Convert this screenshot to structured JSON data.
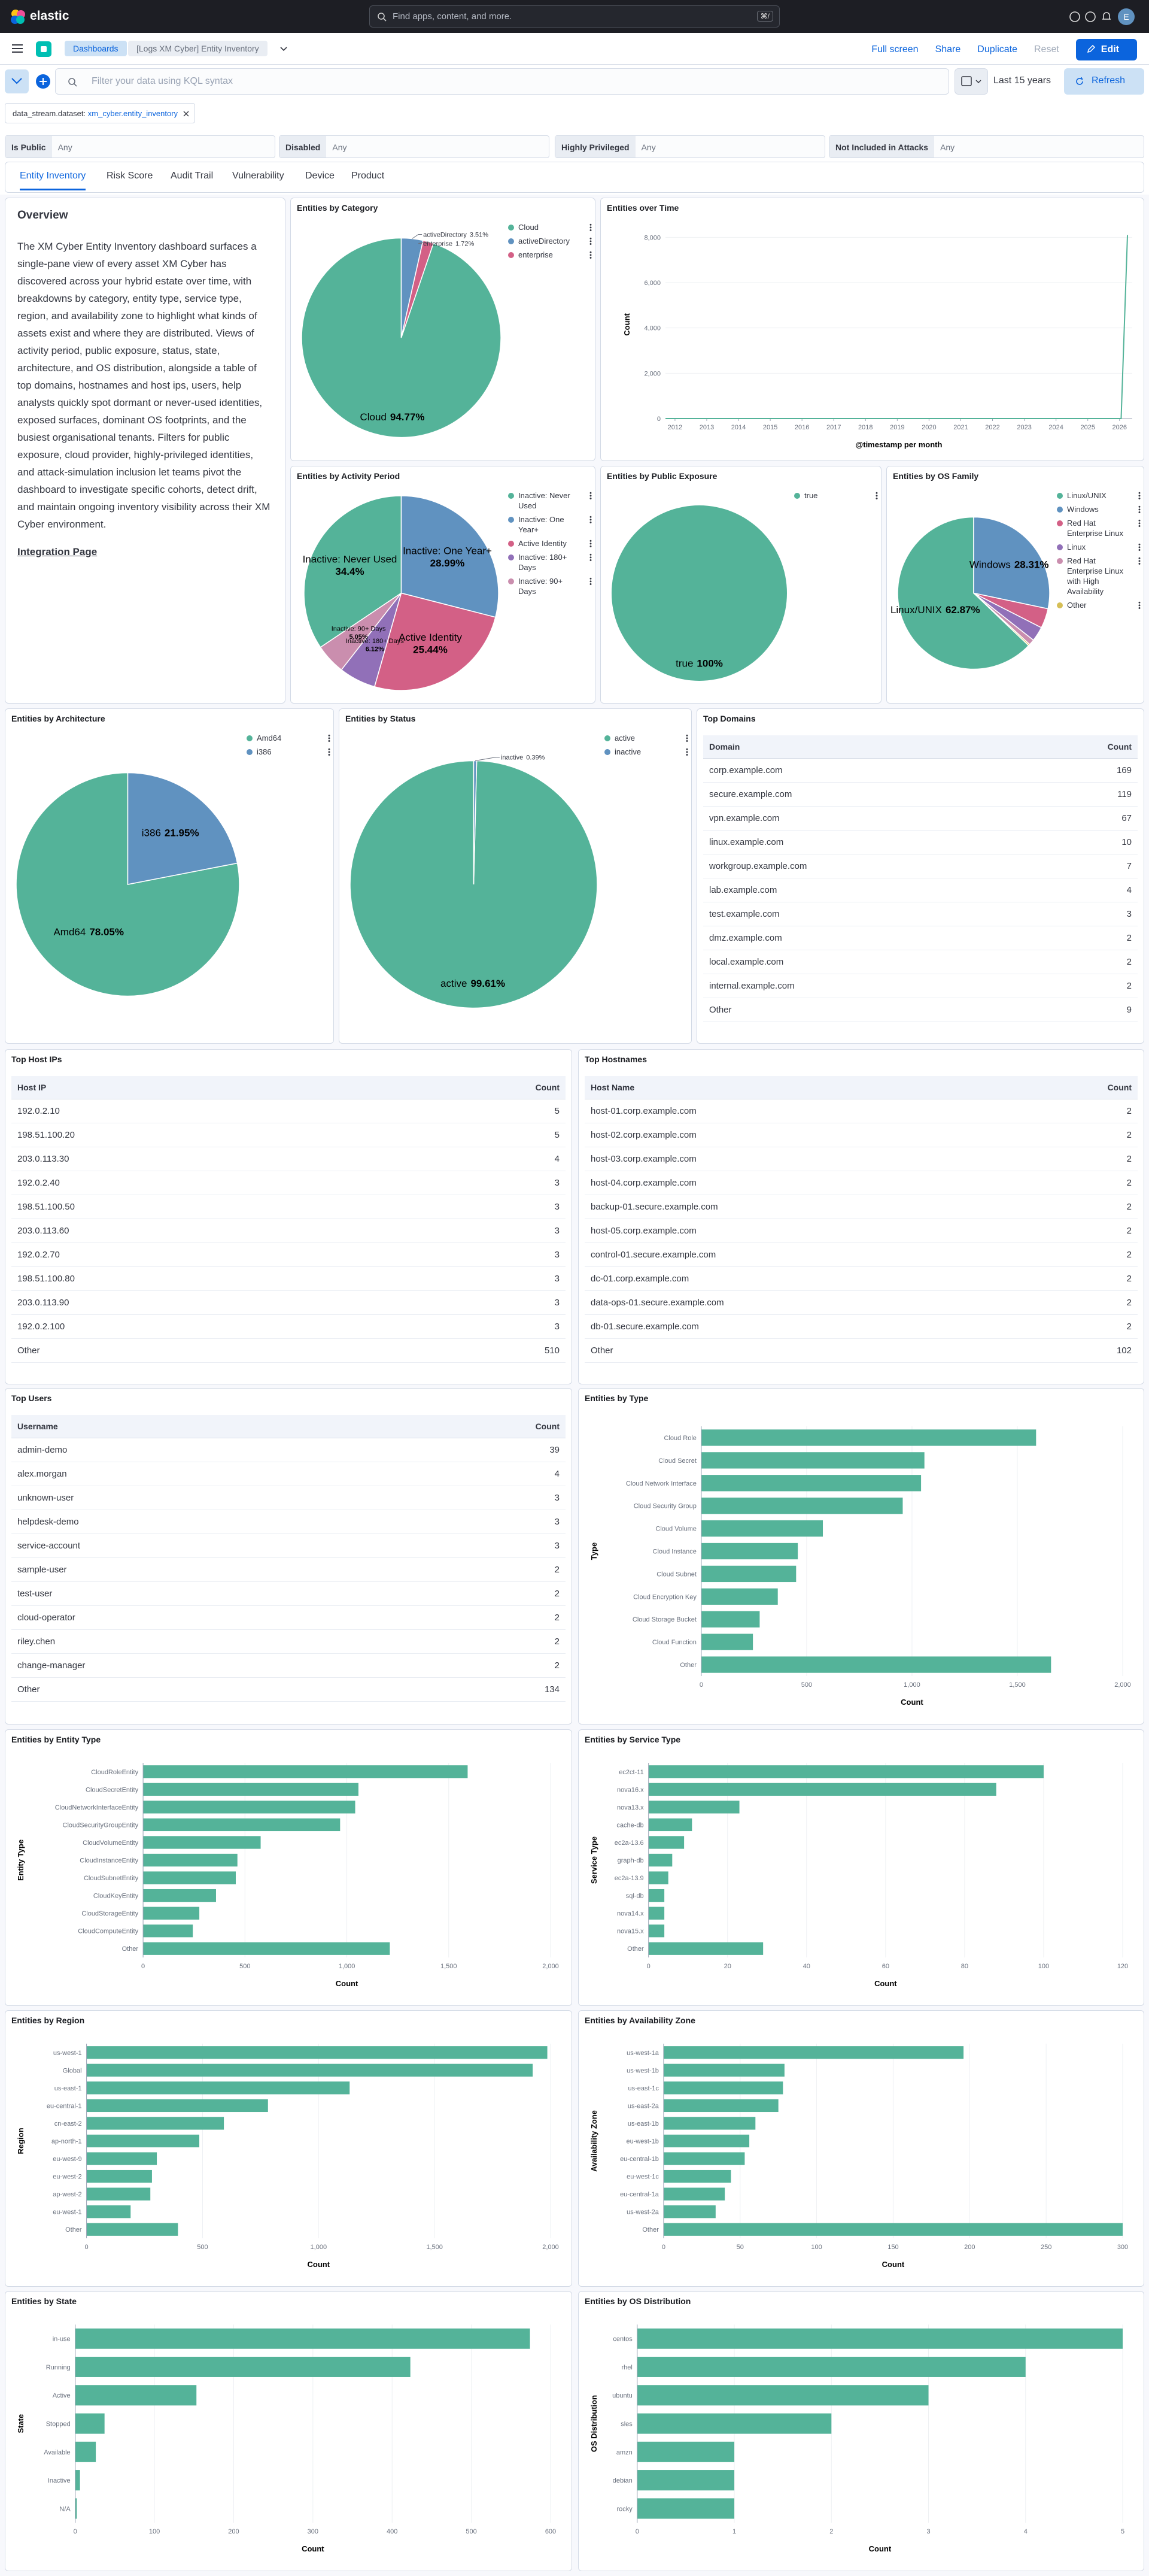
{
  "header": {
    "brand": "elastic",
    "search": "Find apps, content, and more.",
    "shortcut": "⌘/",
    "avatar": "E"
  },
  "nav": {
    "breadcrumbs": [
      "Dashboards",
      "[Logs XM Cyber] Entity Inventory"
    ],
    "actions": [
      "Full screen",
      "Share",
      "Duplicate",
      "Reset"
    ],
    "edit": "Edit"
  },
  "query": {
    "placeholder": "Filter your data using KQL syntax",
    "time": "Last 15 years",
    "refresh": "Refresh"
  },
  "filter": {
    "field": "data_stream.dataset:",
    "value": "xm_cyber.entity_inventory"
  },
  "controls": [
    {
      "label": "Is Public",
      "value": "Any"
    },
    {
      "label": "Disabled",
      "value": "Any"
    },
    {
      "label": "Highly Privileged",
      "value": "Any"
    },
    {
      "label": "Not Included in Attacks",
      "value": "Any"
    }
  ],
  "tabs": [
    "Entity Inventory",
    "Risk Score",
    "Audit Trail",
    "Vulnerability",
    "Device",
    "Product"
  ],
  "overview": {
    "title": "Overview",
    "text": "The XM Cyber Entity Inventory dashboard surfaces a single-pane view of every asset XM Cyber has discovered across your hybrid estate over time, with breakdowns by category, entity type, service type, region, and availability zone to highlight what kinds of assets exist and where they are distributed. Views of activity period, public exposure, status, state, architecture, and OS distribution, alongside a table of top domains, hostnames and host ips, users, help analysts quickly spot dormant or never-used identities, exposed surfaces, dominant OS footprints, and the busiest organisational tenants. Filters for public exposure, cloud provider, highly-privileged identities, and attack-simulation inclusion let teams pivot the dashboard to investigate specific cohorts, detect drift, and maintain ongoing inventory visibility across their XM Cyber environment.",
    "link": "Integration Page"
  },
  "chart_data": [
    {
      "type": "pie",
      "title": "Entities by Category",
      "categories": [
        "Cloud",
        "activeDirectory",
        "enterprise"
      ],
      "values": [
        94.77,
        3.51,
        1.72
      ],
      "value_labels": [
        "94.77%",
        "3.51%",
        "1.72%"
      ],
      "colors": [
        "#54B399",
        "#6092C0",
        "#D36086"
      ]
    },
    {
      "type": "line",
      "title": "Entities over Time",
      "x": [
        2011.7,
        2026.05,
        2026.25
      ],
      "values": [
        0,
        0,
        8100
      ],
      "color": "#54B399",
      "xlim": [
        2011.7,
        2026.4
      ],
      "xticks": [
        2012,
        2013,
        2014,
        2015,
        2016,
        2017,
        2018,
        2019,
        2020,
        2021,
        2022,
        2023,
        2024,
        2025,
        2026
      ],
      "ylim": [
        0,
        8300
      ],
      "yticks": [
        0,
        {
          "value": 2000,
          "label": "2,000"
        },
        {
          "value": 4000,
          "label": "4,000"
        },
        {
          "value": 6000,
          "label": "6,000"
        },
        {
          "value": 8000,
          "label": "8,000"
        }
      ],
      "xlabel": "@timestamp per month",
      "ylabel": "Count",
      "grid": true
    },
    {
      "type": "pie",
      "title": "Entities by Activity Period",
      "categories": [
        "Inactive: Never Used",
        "Inactive: One Year+",
        "Active Identity",
        "Inactive: 180+ Days",
        "Inactive: 90+ Days"
      ],
      "values": [
        34.4,
        28.99,
        25.44,
        6.12,
        5.05
      ],
      "value_labels": [
        "34.4%",
        "28.99%",
        "25.44%",
        "6.12%",
        "5.05%"
      ],
      "colors": [
        "#54B399",
        "#6092C0",
        "#D36086",
        "#9170B8",
        "#CA8EAE"
      ]
    },
    {
      "type": "pie",
      "title": "Entities by Public Exposure",
      "categories": [
        "true"
      ],
      "values": [
        100
      ],
      "value_labels": [
        "100%"
      ],
      "colors": [
        "#54B399"
      ]
    },
    {
      "type": "pie",
      "title": "Entities by OS Family",
      "categories": [
        "Linux/UNIX",
        "Windows",
        "Red Hat Enterprise Linux",
        "Linux",
        "Red Hat Enterprise Linux with High Availability",
        "Other"
      ],
      "values": [
        62.87,
        28.31,
        4.2,
        3.1,
        1.2,
        0.32
      ],
      "value_labels": [
        "62.87%",
        "28.31%",
        null,
        null,
        null,
        null
      ],
      "colors": [
        "#54B399",
        "#6092C0",
        "#D36086",
        "#9170B8",
        "#CA8EAE",
        "#D6BF57"
      ]
    },
    {
      "type": "pie",
      "title": "Entities by Architecture",
      "categories": [
        "Amd64",
        "i386"
      ],
      "values": [
        78.05,
        21.95
      ],
      "value_labels": [
        "78.05%",
        "21.95%"
      ],
      "colors": [
        "#54B399",
        "#6092C0"
      ]
    },
    {
      "type": "pie",
      "title": "Entities by Status",
      "categories": [
        "active",
        "inactive"
      ],
      "values": [
        99.61,
        0.39
      ],
      "value_labels": [
        "99.61%",
        "0.39%"
      ],
      "colors": [
        "#54B399",
        "#6092C0"
      ]
    },
    {
      "type": "hbar",
      "title": "Entities by Type",
      "categories": [
        "Cloud Role",
        "Cloud Secret",
        "Cloud Network Interface",
        "Cloud Security Group",
        "Cloud Volume",
        "Cloud Instance",
        "Cloud Subnet",
        "Cloud Encryption Key",
        "Cloud Storage Bucket",
        "Cloud Function",
        "Other"
      ],
      "values": [
        1589,
        1059,
        1043,
        956,
        577,
        458,
        450,
        363,
        277,
        245,
        1660
      ],
      "color": "#54B399",
      "xlim": [
        0,
        2000
      ],
      "xticks": [
        0,
        500,
        {
          "value": 1000,
          "label": "1,000"
        },
        {
          "value": 1500,
          "label": "1,500"
        },
        {
          "value": 2000,
          "label": "2,000"
        }
      ],
      "xlabel": "Count",
      "ylabel": "Type",
      "grid": true
    },
    {
      "type": "hbar",
      "title": "Entities by Entity Type",
      "categories": [
        "CloudRoleEntity",
        "CloudSecretEntity",
        "CloudNetworkInterfaceEntity",
        "CloudSecurityGroupEntity",
        "CloudVolumeEntity",
        "CloudInstanceEntity",
        "CloudSubnetEntity",
        "CloudKeyEntity",
        "CloudStorageEntity",
        "CloudComputeEntity",
        "Other"
      ],
      "values": [
        1593,
        1057,
        1041,
        967,
        577,
        463,
        455,
        358,
        276,
        244,
        1211
      ],
      "color": "#54B399",
      "xlim": [
        0,
        2000
      ],
      "xticks": [
        0,
        500,
        {
          "value": 1000,
          "label": "1,000"
        },
        {
          "value": 1500,
          "label": "1,500"
        },
        {
          "value": 2000,
          "label": "2,000"
        }
      ],
      "xlabel": "Count",
      "ylabel": "Entity Type",
      "grid": true
    },
    {
      "type": "hbar",
      "title": "Entities by Service Type",
      "categories": [
        "ec2ct-11",
        "nova16.x",
        "nova13.x",
        "cache-db",
        "ec2a-13.6",
        "graph-db",
        "ec2a-13.9",
        "sql-db",
        "nova14.x",
        "nova15.x",
        "Other"
      ],
      "values": [
        100,
        88,
        23,
        11,
        9,
        6,
        5,
        4,
        4,
        4,
        29
      ],
      "color": "#54B399",
      "xlim": [
        0,
        120
      ],
      "xticks": [
        0,
        20,
        40,
        60,
        80,
        100,
        120
      ],
      "xlabel": "Count",
      "ylabel": "Service Type",
      "grid": true
    },
    {
      "type": "hbar",
      "title": "Entities by Region",
      "categories": [
        "us-west-1",
        "Global",
        "us-east-1",
        "eu-central-1",
        "cn-east-2",
        "ap-north-1",
        "eu-west-9",
        "eu-west-2",
        "ap-west-2",
        "eu-west-1",
        "Other"
      ],
      "values": [
        1986,
        1923,
        1134,
        782,
        592,
        486,
        303,
        282,
        275,
        190,
        394
      ],
      "color": "#54B399",
      "xlim": [
        0,
        2000
      ],
      "xticks": [
        0,
        500,
        {
          "value": 1000,
          "label": "1,000"
        },
        {
          "value": 1500,
          "label": "1,500"
        },
        {
          "value": 2000,
          "label": "2,000"
        }
      ],
      "xlabel": "Count",
      "ylabel": "Region",
      "grid": true
    },
    {
      "type": "hbar",
      "title": "Entities by Availability Zone",
      "categories": [
        "us-west-1a",
        "us-west-1b",
        "us-east-1c",
        "us-east-2a",
        "us-east-1b",
        "eu-west-1b",
        "eu-central-1b",
        "eu-west-1c",
        "eu-central-1a",
        "us-west-2a",
        "Other"
      ],
      "values": [
        196,
        79,
        78,
        75,
        60,
        56,
        53,
        44,
        40,
        34,
        300
      ],
      "color": "#54B399",
      "xlim": [
        0,
        300
      ],
      "xticks": [
        0,
        50,
        100,
        150,
        200,
        250,
        300
      ],
      "xlabel": "Count",
      "ylabel": "Availability Zone",
      "grid": true
    },
    {
      "type": "hbar",
      "title": "Entities by State",
      "categories": [
        "in-use",
        "Running",
        "Active",
        "Stopped",
        "Available",
        "Inactive",
        "N/A"
      ],
      "values": [
        574,
        423,
        153,
        37,
        26,
        6,
        2
      ],
      "color": "#54B399",
      "xlim": [
        0,
        600
      ],
      "xticks": [
        0,
        100,
        200,
        300,
        400,
        500,
        600
      ],
      "xlabel": "Count",
      "ylabel": "State",
      "grid": true
    },
    {
      "type": "hbar",
      "title": "Entities by OS Distribution",
      "categories": [
        "centos",
        "rhel",
        "ubuntu",
        "sles",
        "amzn",
        "debian",
        "rocky"
      ],
      "values": [
        5,
        4,
        3,
        2,
        1,
        1,
        1
      ],
      "color": "#54B399",
      "xlim": [
        0,
        5
      ],
      "xticks": [
        0,
        1,
        2,
        3,
        4,
        5
      ],
      "xlabel": "Count",
      "ylabel": "OS Distribution",
      "grid": true
    }
  ],
  "tables": [
    {
      "title": "Top Domains",
      "columns": [
        "Domain",
        "Count"
      ],
      "rows": [
        [
          "corp.example.com",
          169
        ],
        [
          "secure.example.com",
          119
        ],
        [
          "vpn.example.com",
          67
        ],
        [
          "linux.example.com",
          10
        ],
        [
          "workgroup.example.com",
          7
        ],
        [
          "lab.example.com",
          4
        ],
        [
          "test.example.com",
          3
        ],
        [
          "dmz.example.com",
          2
        ],
        [
          "local.example.com",
          2
        ],
        [
          "internal.example.com",
          2
        ],
        [
          "Other",
          9
        ]
      ]
    },
    {
      "title": "Top Host IPs",
      "columns": [
        "Host IP",
        "Count"
      ],
      "rows": [
        [
          "192.0.2.10",
          5
        ],
        [
          "198.51.100.20",
          5
        ],
        [
          "203.0.113.30",
          4
        ],
        [
          "192.0.2.40",
          3
        ],
        [
          "198.51.100.50",
          3
        ],
        [
          "203.0.113.60",
          3
        ],
        [
          "192.0.2.70",
          3
        ],
        [
          "198.51.100.80",
          3
        ],
        [
          "203.0.113.90",
          3
        ],
        [
          "192.0.2.100",
          3
        ],
        [
          "Other",
          510
        ]
      ]
    },
    {
      "title": "Top Hostnames",
      "columns": [
        "Host Name",
        "Count"
      ],
      "rows": [
        [
          "host-01.corp.example.com",
          2
        ],
        [
          "host-02.corp.example.com",
          2
        ],
        [
          "host-03.corp.example.com",
          2
        ],
        [
          "host-04.corp.example.com",
          2
        ],
        [
          "backup-01.secure.example.com",
          2
        ],
        [
          "host-05.corp.example.com",
          2
        ],
        [
          "control-01.secure.example.com",
          2
        ],
        [
          "dc-01.corp.example.com",
          2
        ],
        [
          "data-ops-01.secure.example.com",
          2
        ],
        [
          "db-01.secure.example.com",
          2
        ],
        [
          "Other",
          102
        ]
      ]
    },
    {
      "title": "Top Users",
      "columns": [
        "Username",
        "Count"
      ],
      "rows": [
        [
          "admin-demo",
          39
        ],
        [
          "alex.morgan",
          4
        ],
        [
          "unknown-user",
          3
        ],
        [
          "helpdesk-demo",
          3
        ],
        [
          "service-account",
          3
        ],
        [
          "sample-user",
          2
        ],
        [
          "test-user",
          2
        ],
        [
          "cloud-operator",
          2
        ],
        [
          "riley.chen",
          2
        ],
        [
          "change-manager",
          2
        ],
        [
          "Other",
          134
        ]
      ]
    }
  ]
}
